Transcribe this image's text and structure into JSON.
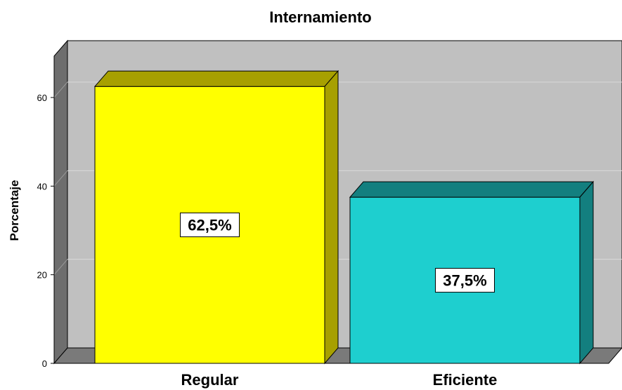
{
  "chart_data": {
    "type": "bar",
    "title": "Internamiento",
    "xlabel": "",
    "ylabel": "Porcentaje",
    "categories": [
      "Regular",
      "Eficiente"
    ],
    "values": [
      62.5,
      37.5
    ],
    "data_labels": [
      "62,5%",
      "37,5%"
    ],
    "yticks": [
      0,
      20,
      40,
      60
    ],
    "ylim": [
      0,
      74
    ],
    "grid": true,
    "style": "3d",
    "colors": {
      "bars_front": [
        "#ffff00",
        "#1ecfcf"
      ],
      "bars_top": [
        "#a7a000",
        "#137f7f"
      ],
      "bars_side": [
        "#a7a000",
        "#137f7f"
      ],
      "plot_background": "#c0c0c0",
      "wall_side": "#6e6e6e",
      "floor": "#7a7a7a"
    }
  }
}
